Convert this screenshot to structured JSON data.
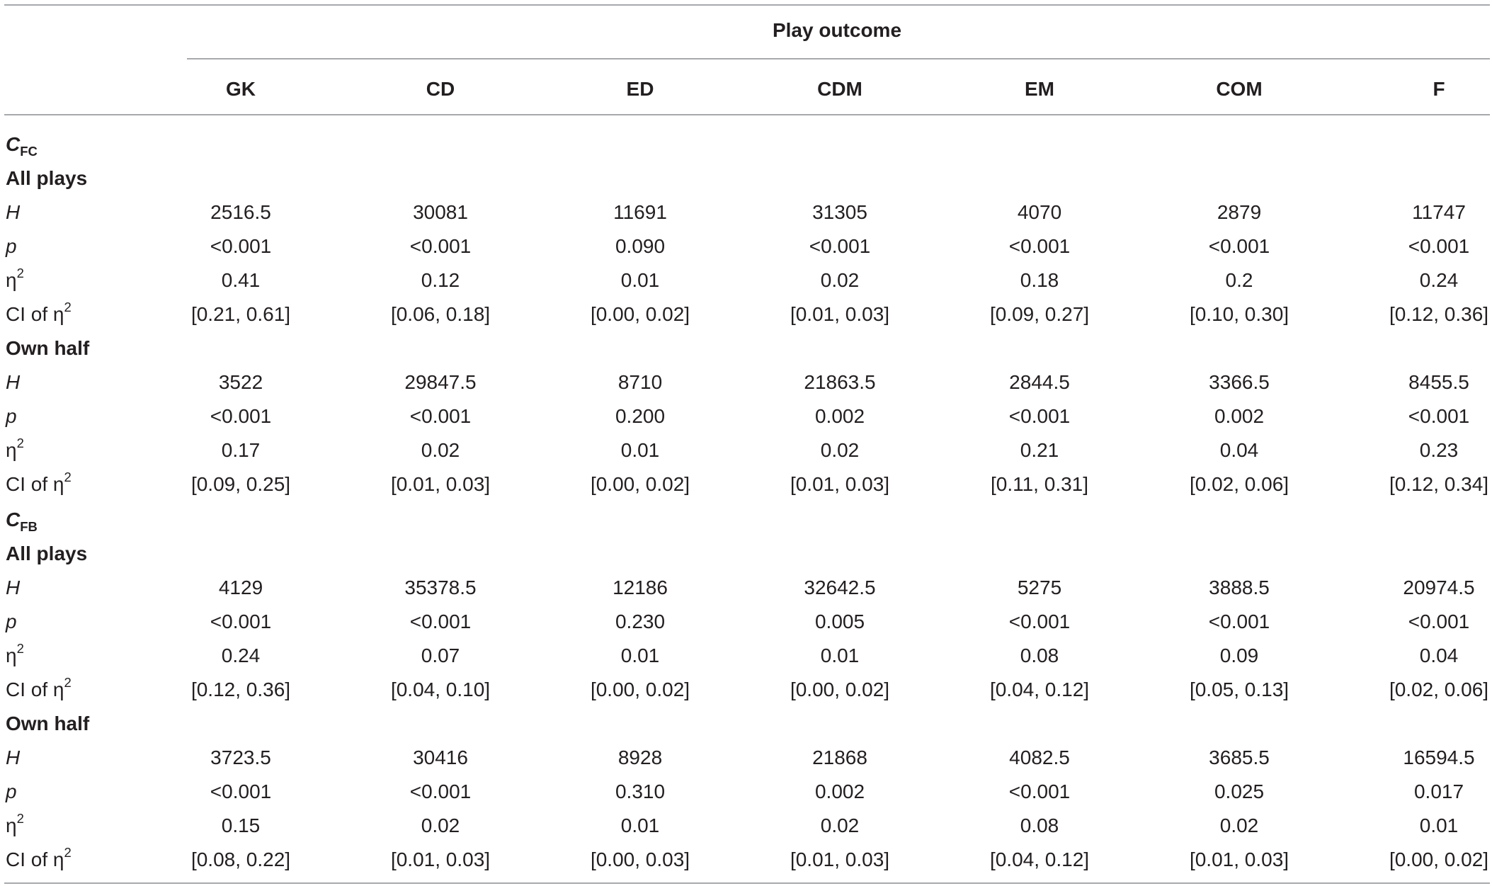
{
  "header": {
    "group_label": "Play outcome",
    "columns": [
      "GK",
      "CD",
      "ED",
      "CDM",
      "EM",
      "COM",
      "F"
    ]
  },
  "stat_labels": {
    "H": "H",
    "p": "p",
    "eta_base": "η",
    "eta_sup": "2",
    "ci_prefix": "CI of η",
    "ci_sup": "2"
  },
  "groups": [
    {
      "symbol": "C",
      "subscript": "FC",
      "sections": [
        {
          "title": "All plays",
          "rows": {
            "H": [
              "2516.5",
              "30081",
              "11691",
              "31305",
              "4070",
              "2879",
              "11747"
            ],
            "p": [
              "<0.001",
              "<0.001",
              "0.090",
              "<0.001",
              "<0.001",
              "<0.001",
              "<0.001"
            ],
            "eta": [
              "0.41",
              "0.12",
              "0.01",
              "0.02",
              "0.18",
              "0.2",
              "0.24"
            ],
            "ci": [
              "[0.21, 0.61]",
              "[0.06, 0.18]",
              "[0.00, 0.02]",
              "[0.01, 0.03]",
              "[0.09, 0.27]",
              "[0.10, 0.30]",
              "[0.12, 0.36]"
            ]
          }
        },
        {
          "title": "Own half",
          "rows": {
            "H": [
              "3522",
              "29847.5",
              "8710",
              "21863.5",
              "2844.5",
              "3366.5",
              "8455.5"
            ],
            "p": [
              "<0.001",
              "<0.001",
              "0.200",
              "0.002",
              "<0.001",
              "0.002",
              "<0.001"
            ],
            "eta": [
              "0.17",
              "0.02",
              "0.01",
              "0.02",
              "0.21",
              "0.04",
              "0.23"
            ],
            "ci": [
              "[0.09, 0.25]",
              "[0.01, 0.03]",
              "[0.00, 0.02]",
              "[0.01, 0.03]",
              "[0.11, 0.31]",
              "[0.02, 0.06]",
              "[0.12, 0.34]"
            ]
          }
        }
      ]
    },
    {
      "symbol": "C",
      "subscript": "FB",
      "sections": [
        {
          "title": "All plays",
          "rows": {
            "H": [
              "4129",
              "35378.5",
              "12186",
              "32642.5",
              "5275",
              "3888.5",
              "20974.5"
            ],
            "p": [
              "<0.001",
              "<0.001",
              "0.230",
              "0.005",
              "<0.001",
              "<0.001",
              "<0.001"
            ],
            "eta": [
              "0.24",
              "0.07",
              "0.01",
              "0.01",
              "0.08",
              "0.09",
              "0.04"
            ],
            "ci": [
              "[0.12, 0.36]",
              "[0.04, 0.10]",
              "[0.00, 0.02]",
              "[0.00, 0.02]",
              "[0.04, 0.12]",
              "[0.05, 0.13]",
              "[0.02, 0.06]"
            ]
          }
        },
        {
          "title": "Own half",
          "rows": {
            "H": [
              "3723.5",
              "30416",
              "8928",
              "21868",
              "4082.5",
              "3685.5",
              "16594.5"
            ],
            "p": [
              "<0.001",
              "<0.001",
              "0.310",
              "0.002",
              "<0.001",
              "0.025",
              "0.017"
            ],
            "eta": [
              "0.15",
              "0.02",
              "0.01",
              "0.02",
              "0.08",
              "0.02",
              "0.01"
            ],
            "ci": [
              "[0.08, 0.22]",
              "[0.01, 0.03]",
              "[0.00, 0.03]",
              "[0.01, 0.03]",
              "[0.04, 0.12]",
              "[0.01, 0.03]",
              "[0.00, 0.02]"
            ]
          }
        }
      ]
    }
  ]
}
